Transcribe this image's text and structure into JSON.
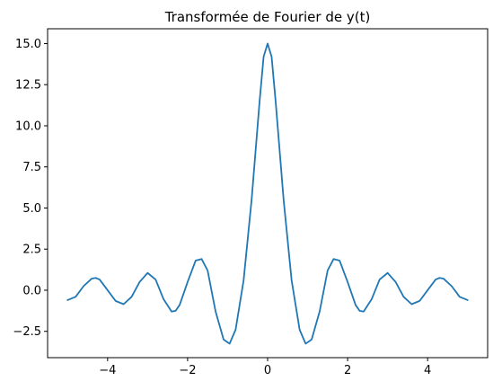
{
  "chart_data": {
    "type": "line",
    "title": "Transformée de Fourier de y(t)",
    "xlabel": "",
    "ylabel": "",
    "xlim": [
      -5.5,
      5.5
    ],
    "ylim": [
      -4.1,
      15.9
    ],
    "x_ticks": [
      -4,
      -2,
      0,
      2,
      4
    ],
    "x_tick_labels": [
      "−4",
      "−2",
      "0",
      "2",
      "4"
    ],
    "y_ticks": [
      -2.5,
      0.0,
      2.5,
      5.0,
      7.5,
      10.0,
      12.5,
      15.0
    ],
    "y_tick_labels": [
      "−2.5",
      "0.0",
      "2.5",
      "5.0",
      "7.5",
      "10.0",
      "12.5",
      "15.0"
    ],
    "grid": false,
    "series": [
      {
        "color": "#1f77b4",
        "x": [
          -5.0,
          -4.8,
          -4.6,
          -4.4,
          -4.3,
          -4.2,
          -4.0,
          -3.8,
          -3.6,
          -3.4,
          -3.2,
          -3.0,
          -2.8,
          -2.6,
          -2.4,
          -2.3,
          -2.2,
          -2.0,
          -1.8,
          -1.65,
          -1.5,
          -1.3,
          -1.1,
          -0.95,
          -0.8,
          -0.6,
          -0.4,
          -0.2,
          -0.1,
          0.0,
          0.1,
          0.2,
          0.4,
          0.6,
          0.8,
          0.95,
          1.1,
          1.3,
          1.5,
          1.65,
          1.8,
          2.0,
          2.2,
          2.3,
          2.4,
          2.6,
          2.8,
          3.0,
          3.2,
          3.4,
          3.6,
          3.8,
          4.0,
          4.2,
          4.3,
          4.4,
          4.6,
          4.8,
          5.0
        ],
        "y": [
          -0.6,
          -0.4,
          0.25,
          0.7,
          0.75,
          0.65,
          0.0,
          -0.65,
          -0.85,
          -0.4,
          0.5,
          1.05,
          0.65,
          -0.55,
          -1.3,
          -1.25,
          -0.9,
          0.5,
          1.8,
          1.9,
          1.2,
          -1.3,
          -3.0,
          -3.25,
          -2.4,
          0.6,
          5.5,
          11.5,
          14.2,
          15.0,
          14.2,
          11.5,
          5.5,
          0.6,
          -2.4,
          -3.25,
          -3.0,
          -1.3,
          1.2,
          1.9,
          1.8,
          0.5,
          -0.9,
          -1.25,
          -1.3,
          -0.55,
          0.65,
          1.05,
          0.5,
          -0.4,
          -0.85,
          -0.65,
          0.0,
          0.65,
          0.75,
          0.7,
          0.25,
          -0.4,
          -0.6
        ]
      }
    ]
  }
}
